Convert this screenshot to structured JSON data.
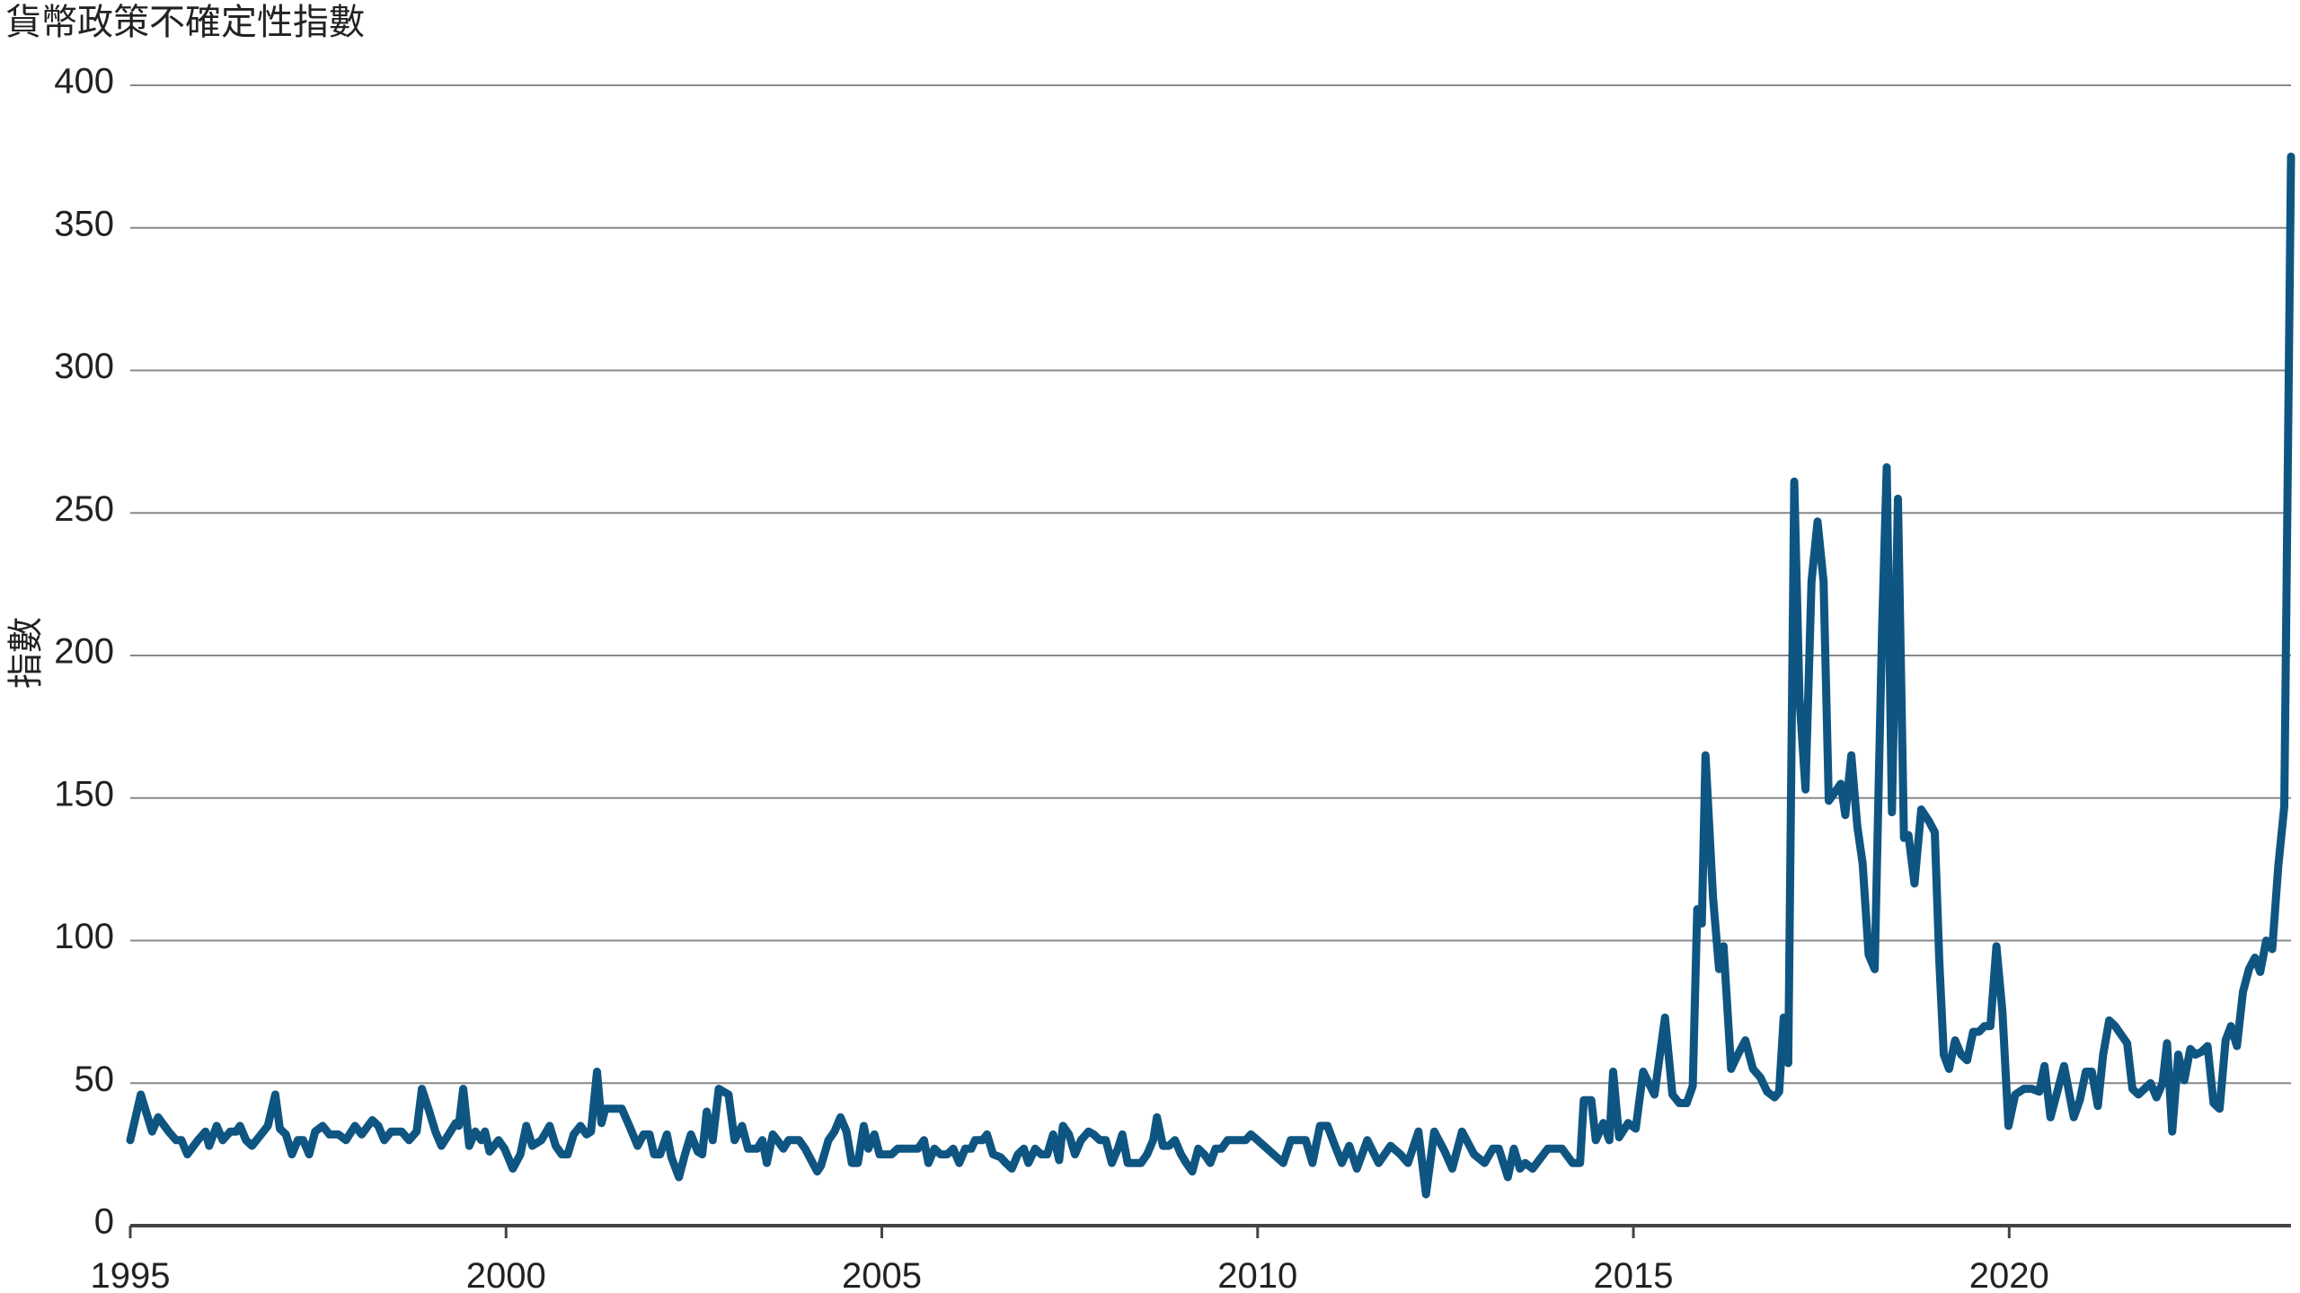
{
  "chart_data": {
    "type": "line",
    "title": "貨幣政策不確定性指數",
    "y_label": "指數",
    "color": "#0f5582",
    "x": [
      1995.0,
      1995.14,
      1995.29,
      1995.37,
      1995.51,
      1995.61,
      1995.68,
      1995.76,
      1995.9,
      1996.0,
      1996.05,
      1996.15,
      1996.23,
      1996.33,
      1996.41,
      1996.46,
      1996.54,
      1996.62,
      1996.74,
      1996.83,
      1996.93,
      1996.99,
      1997.07,
      1997.15,
      1997.23,
      1997.3,
      1997.38,
      1997.46,
      1997.56,
      1997.65,
      1997.77,
      1997.87,
      1997.99,
      1998.08,
      1998.22,
      1998.3,
      1998.38,
      1998.47,
      1998.61,
      1998.71,
      1998.81,
      1998.88,
      1998.98,
      1999.06,
      1999.14,
      1999.26,
      1999.33,
      1999.37,
      1999.43,
      1999.51,
      1999.59,
      1999.67,
      1999.72,
      1999.78,
      1999.9,
      1999.98,
      2000.09,
      2000.19,
      2000.27,
      2000.35,
      2000.47,
      2000.58,
      2000.66,
      2000.74,
      2000.82,
      2000.9,
      2000.99,
      2001.07,
      2001.13,
      2001.21,
      2001.27,
      2001.32,
      2001.4,
      2001.54,
      2001.64,
      2001.75,
      2001.83,
      2001.91,
      2001.97,
      2002.05,
      2002.14,
      2002.2,
      2002.3,
      2002.38,
      2002.46,
      2002.55,
      2002.61,
      2002.67,
      2002.75,
      2002.83,
      2002.96,
      2003.04,
      2003.14,
      2003.22,
      2003.34,
      2003.41,
      2003.47,
      2003.55,
      2003.61,
      2003.69,
      2003.76,
      2003.9,
      2003.98,
      2004.06,
      2004.14,
      2004.19,
      2004.29,
      2004.37,
      2004.45,
      2004.53,
      2004.6,
      2004.68,
      2004.76,
      2004.82,
      2004.9,
      2004.97,
      2005.13,
      2005.21,
      2005.37,
      2005.48,
      2005.56,
      2005.62,
      2005.7,
      2005.78,
      2005.87,
      2005.95,
      2006.03,
      2006.11,
      2006.19,
      2006.24,
      2006.34,
      2006.4,
      2006.48,
      2006.58,
      2006.65,
      2006.73,
      2006.81,
      2006.89,
      2006.95,
      2007.04,
      2007.12,
      2007.2,
      2007.28,
      2007.36,
      2007.41,
      2007.49,
      2007.57,
      2007.65,
      2007.75,
      2007.82,
      2007.9,
      2007.98,
      2008.06,
      2008.14,
      2008.2,
      2008.27,
      2008.35,
      2008.45,
      2008.53,
      2008.61,
      2008.66,
      2008.74,
      2008.82,
      2008.9,
      2008.98,
      2009.05,
      2009.13,
      2009.21,
      2009.29,
      2009.37,
      2009.44,
      2009.52,
      2009.6,
      2009.68,
      2009.76,
      2009.84,
      2009.91,
      2010.0,
      2010.34,
      2010.44,
      2010.64,
      2010.73,
      2010.83,
      2010.93,
      2011.03,
      2011.12,
      2011.22,
      2011.32,
      2011.46,
      2011.61,
      2011.77,
      2011.9,
      2012.0,
      2012.14,
      2012.24,
      2012.35,
      2012.49,
      2012.59,
      2012.72,
      2012.88,
      2013.02,
      2013.13,
      2013.21,
      2013.33,
      2013.41,
      2013.49,
      2013.56,
      2013.66,
      2013.86,
      2014.05,
      2014.19,
      2014.29,
      2014.34,
      2014.44,
      2014.5,
      2014.6,
      2014.68,
      2014.73,
      2014.81,
      2014.93,
      2015.03,
      2015.13,
      2015.28,
      2015.42,
      2015.52,
      2015.61,
      2015.71,
      2015.79,
      2015.85,
      2015.91,
      2015.96,
      2016.06,
      2016.14,
      2016.2,
      2016.3,
      2016.39,
      2016.49,
      2016.59,
      2016.69,
      2016.78,
      2016.88,
      2016.94,
      2017.0,
      2017.06,
      2017.14,
      2017.21,
      2017.29,
      2017.37,
      2017.45,
      2017.53,
      2017.6,
      2017.68,
      2017.76,
      2017.82,
      2017.9,
      2017.98,
      2018.05,
      2018.13,
      2018.21,
      2018.31,
      2018.37,
      2018.44,
      2018.52,
      2018.6,
      2018.66,
      2018.74,
      2018.83,
      2018.93,
      2019.01,
      2019.07,
      2019.13,
      2019.2,
      2019.28,
      2019.36,
      2019.44,
      2019.52,
      2019.6,
      2019.67,
      2019.75,
      2019.83,
      2019.91,
      2019.99,
      2020.08,
      2020.2,
      2020.3,
      2020.4,
      2020.47,
      2020.55,
      2020.65,
      2020.73,
      2020.86,
      2020.94,
      2021.02,
      2021.1,
      2021.18,
      2021.25,
      2021.33,
      2021.41,
      2021.49,
      2021.57,
      2021.64,
      2021.72,
      2021.8,
      2021.88,
      2021.96,
      2022.04,
      2022.1,
      2022.17,
      2022.25,
      2022.33,
      2022.41,
      2022.48,
      2022.56,
      2022.64,
      2022.72,
      2022.8,
      2022.88,
      2022.95,
      2023.03,
      2023.11,
      2023.19,
      2023.27,
      2023.34,
      2023.42,
      2023.5,
      2023.58,
      2023.66,
      2023.75
    ],
    "values": [
      30,
      46,
      33,
      38,
      33,
      30,
      30,
      25,
      30,
      33,
      28,
      35,
      30,
      33,
      33,
      35,
      30,
      28,
      32,
      35,
      46,
      34,
      32,
      25,
      30,
      30,
      25,
      33,
      35,
      32,
      32,
      30,
      35,
      32,
      37,
      35,
      30,
      33,
      33,
      30,
      33,
      48,
      40,
      33,
      28,
      33,
      36,
      35,
      48,
      28,
      33,
      30,
      33,
      26,
      30,
      27,
      20,
      25,
      35,
      28,
      30,
      35,
      28,
      25,
      25,
      32,
      35,
      32,
      33,
      54,
      36,
      41,
      41,
      41,
      35,
      28,
      32,
      32,
      25,
      25,
      32,
      24,
      17,
      25,
      32,
      26,
      25,
      40,
      30,
      48,
      46,
      30,
      35,
      27,
      27,
      30,
      22,
      32,
      30,
      27,
      30,
      30,
      27,
      23,
      19,
      21,
      30,
      33,
      38,
      33,
      22,
      22,
      35,
      27,
      32,
      25,
      25,
      27,
      27,
      27,
      30,
      22,
      27,
      25,
      25,
      27,
      22,
      27,
      27,
      30,
      30,
      32,
      25,
      24,
      22,
      20,
      25,
      27,
      22,
      27,
      25,
      25,
      32,
      23,
      35,
      32,
      25,
      30,
      33,
      32,
      30,
      30,
      22,
      27,
      32,
      22,
      22,
      22,
      25,
      30,
      38,
      28,
      28,
      30,
      25,
      22,
      19,
      27,
      25,
      22,
      27,
      27,
      30,
      30,
      30,
      30,
      32,
      30,
      22,
      30,
      30,
      22,
      35,
      35,
      28,
      22,
      28,
      20,
      30,
      22,
      28,
      25,
      22,
      33,
      11,
      33,
      26,
      20,
      33,
      25,
      22,
      27,
      27,
      17,
      27,
      20,
      22,
      20,
      27,
      27,
      22,
      22,
      44,
      44,
      30,
      36,
      30,
      54,
      31,
      36,
      34,
      54,
      46,
      73,
      46,
      43,
      43,
      49,
      111,
      106,
      165,
      115,
      90,
      98,
      55,
      60,
      65,
      55,
      52,
      47,
      45,
      47,
      73,
      57,
      261,
      185,
      153,
      226,
      247,
      226,
      149,
      152,
      155,
      144,
      165,
      140,
      127,
      95,
      90,
      210,
      266,
      145,
      255,
      136,
      137,
      120,
      146,
      142,
      138,
      93,
      60,
      55,
      65,
      60,
      58,
      68,
      68,
      70,
      70,
      98,
      75,
      35,
      46,
      48,
      48,
      47,
      56,
      38,
      48,
      56,
      38,
      44,
      54,
      54,
      42,
      60,
      72,
      70,
      67,
      64,
      48,
      46,
      48,
      50,
      45,
      50,
      64,
      33,
      60,
      51,
      62,
      60,
      61,
      63,
      43,
      41,
      65,
      70,
      63,
      82,
      90,
      94,
      89,
      100,
      97,
      126,
      147,
      375
    ],
    "xlim": [
      1995,
      2023.75
    ],
    "xticks": [
      1995,
      2000,
      2005,
      2010,
      2015,
      2020
    ],
    "ylim": [
      0,
      400
    ],
    "yticks": [
      0,
      50,
      100,
      150,
      200,
      250,
      300,
      350,
      400
    ],
    "grid": true
  }
}
